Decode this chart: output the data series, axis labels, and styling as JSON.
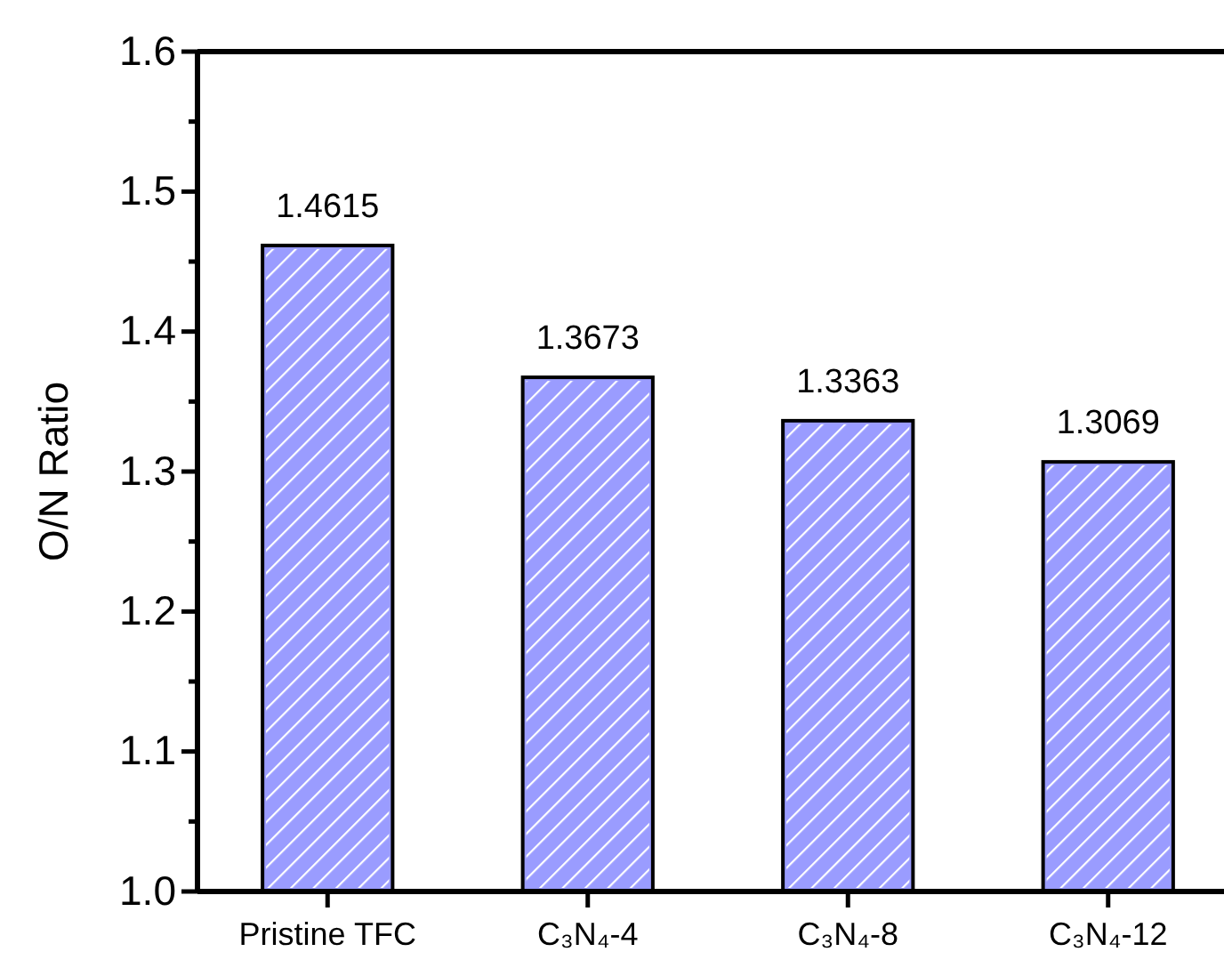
{
  "chart_data": {
    "type": "bar",
    "ylabel": "O/N Ratio",
    "categories": [
      "Pristine TFC",
      "C₃N₄-4",
      "C₃N₄-8",
      "C₃N₄-12"
    ],
    "values": [
      1.4615,
      1.3673,
      1.3363,
      1.3069
    ],
    "color": "#9a9cff",
    "ylim": [
      1.0,
      1.6
    ],
    "yticks": [
      {
        "value": 1.0,
        "label": "1.0"
      },
      {
        "value": 1.05,
        "label": null
      },
      {
        "value": 1.1,
        "label": "1.1"
      },
      {
        "value": 1.15,
        "label": null
      },
      {
        "value": 1.2,
        "label": "1.2"
      },
      {
        "value": 1.25,
        "label": null
      },
      {
        "value": 1.3,
        "label": "1.3"
      },
      {
        "value": 1.35,
        "label": null
      },
      {
        "value": 1.4,
        "label": "1.4"
      },
      {
        "value": 1.45,
        "label": null
      },
      {
        "value": 1.5,
        "label": "1.5"
      },
      {
        "value": 1.55,
        "label": null
      },
      {
        "value": 1.6,
        "label": "1.6"
      }
    ],
    "data_labels": true,
    "grid": false
  }
}
